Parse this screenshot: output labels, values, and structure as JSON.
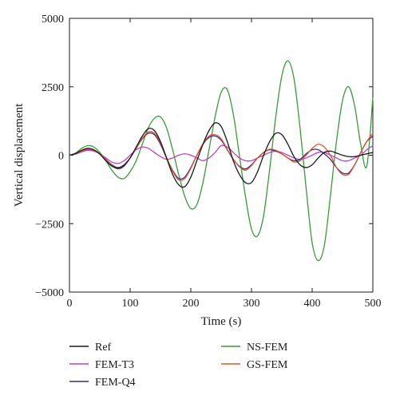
{
  "chart_data": {
    "type": "line",
    "xlabel": "Time (s)",
    "ylabel": "Vertical displacement",
    "xlim": [
      0,
      500
    ],
    "ylim": [
      -5000,
      5000
    ],
    "x_ticks": [
      0,
      100,
      200,
      300,
      400,
      500
    ],
    "y_ticks": [
      5000,
      2500,
      0,
      -2500,
      -5000
    ],
    "x_tick_labels": [
      "0",
      "100",
      "200",
      "300",
      "400",
      "500"
    ],
    "y_tick_labels": [
      "5000",
      "2500",
      "0",
      "−2500",
      "−5000"
    ],
    "grid": false,
    "legend_position": "bottom",
    "series": [
      {
        "name": "Ref",
        "color": "#1a1a1a",
        "x": [
          0,
          10,
          20,
          30,
          40,
          50,
          60,
          70,
          80,
          90,
          100,
          110,
          120,
          130,
          140,
          150,
          160,
          170,
          180,
          190,
          200,
          210,
          220,
          230,
          240,
          250,
          260,
          270,
          280,
          290,
          300,
          310,
          320,
          330,
          340,
          350,
          360,
          370,
          380,
          390,
          400,
          410,
          420,
          430,
          440,
          450,
          460,
          470,
          480,
          490,
          500
        ],
        "y": [
          0,
          60,
          180,
          250,
          200,
          40,
          -200,
          -400,
          -480,
          -380,
          -100,
          300,
          700,
          970,
          900,
          500,
          -100,
          -700,
          -1080,
          -1150,
          -800,
          -200,
          400,
          900,
          1180,
          1050,
          500,
          -200,
          -700,
          -1000,
          -1000,
          -600,
          0,
          500,
          800,
          750,
          400,
          -50,
          -350,
          -450,
          -350,
          -100,
          100,
          150,
          80,
          0,
          -50,
          -50,
          0,
          50,
          100
        ]
      },
      {
        "name": "FEM-T3",
        "color": "#c040c0",
        "x": [
          0,
          10,
          20,
          30,
          40,
          50,
          60,
          70,
          80,
          90,
          100,
          110,
          120,
          130,
          140,
          150,
          160,
          170,
          180,
          190,
          200,
          210,
          220,
          230,
          240,
          250,
          260,
          270,
          280,
          290,
          300,
          310,
          320,
          330,
          340,
          350,
          360,
          370,
          380,
          390,
          400,
          410,
          420,
          430,
          440,
          450,
          460,
          470,
          480,
          490,
          500
        ],
        "y": [
          0,
          40,
          120,
          180,
          150,
          50,
          -100,
          -250,
          -300,
          -200,
          0,
          200,
          300,
          250,
          100,
          -50,
          -150,
          -100,
          0,
          50,
          0,
          -100,
          -200,
          -100,
          100,
          350,
          300,
          100,
          -100,
          -200,
          -200,
          -100,
          0,
          100,
          150,
          100,
          0,
          -100,
          -150,
          -100,
          0,
          100,
          100,
          0,
          -100,
          -200,
          -200,
          -100,
          0,
          200,
          350
        ]
      },
      {
        "name": "FEM-Q4",
        "color": "#3d2a80",
        "x": [
          0,
          10,
          20,
          30,
          40,
          50,
          60,
          70,
          80,
          90,
          100,
          110,
          120,
          130,
          140,
          150,
          160,
          170,
          180,
          190,
          200,
          210,
          220,
          230,
          240,
          250,
          260,
          270,
          280,
          290,
          300,
          310,
          320,
          330,
          340,
          350,
          360,
          370,
          380,
          390,
          400,
          410,
          420,
          430,
          440,
          450,
          460,
          470,
          480,
          490,
          500
        ],
        "y": [
          0,
          50,
          150,
          220,
          180,
          50,
          -150,
          -350,
          -450,
          -350,
          -100,
          250,
          600,
          800,
          750,
          400,
          -100,
          -550,
          -850,
          -800,
          -450,
          0,
          400,
          650,
          700,
          550,
          200,
          -150,
          -400,
          -500,
          -350,
          -100,
          100,
          200,
          150,
          50,
          -100,
          -200,
          -150,
          50,
          200,
          200,
          50,
          -150,
          -450,
          -650,
          -650,
          -350,
          100,
          500,
          700
        ]
      },
      {
        "name": "NS-FEM",
        "color": "#3a9a3a",
        "x": [
          0,
          10,
          20,
          30,
          40,
          50,
          60,
          70,
          80,
          90,
          100,
          110,
          120,
          130,
          140,
          150,
          160,
          170,
          180,
          190,
          200,
          210,
          220,
          230,
          240,
          250,
          260,
          270,
          280,
          290,
          300,
          310,
          320,
          330,
          340,
          350,
          360,
          370,
          380,
          390,
          400,
          410,
          420,
          430,
          440,
          450,
          460,
          470,
          480,
          490,
          500
        ],
        "y": [
          0,
          80,
          250,
          350,
          300,
          100,
          -200,
          -550,
          -800,
          -850,
          -600,
          -200,
          400,
          1000,
          1350,
          1400,
          1000,
          200,
          -700,
          -1500,
          -1950,
          -1800,
          -1000,
          200,
          1400,
          2300,
          2400,
          1500,
          0,
          -1500,
          -2700,
          -2950,
          -2200,
          -500,
          1400,
          2900,
          3450,
          2800,
          1000,
          -1200,
          -3200,
          -3850,
          -3300,
          -1500,
          500,
          2000,
          2500,
          1800,
          400,
          -400,
          2100
        ]
      },
      {
        "name": "GS-FEM",
        "color": "#e0552a",
        "x": [
          0,
          10,
          20,
          30,
          40,
          50,
          60,
          70,
          80,
          90,
          100,
          110,
          120,
          130,
          140,
          150,
          160,
          170,
          180,
          190,
          200,
          210,
          220,
          230,
          240,
          250,
          260,
          270,
          280,
          290,
          300,
          310,
          320,
          330,
          340,
          350,
          360,
          370,
          380,
          390,
          400,
          410,
          420,
          430,
          440,
          450,
          460,
          470,
          480,
          490,
          500
        ],
        "y": [
          0,
          50,
          150,
          220,
          180,
          50,
          -150,
          -380,
          -500,
          -400,
          -100,
          250,
          620,
          850,
          800,
          450,
          -80,
          -580,
          -900,
          -850,
          -480,
          0,
          420,
          700,
          750,
          600,
          220,
          -150,
          -420,
          -550,
          -380,
          -100,
          100,
          220,
          180,
          50,
          -100,
          -250,
          -200,
          0,
          250,
          400,
          300,
          0,
          -450,
          -700,
          -700,
          -350,
          100,
          500,
          800
        ]
      }
    ]
  }
}
